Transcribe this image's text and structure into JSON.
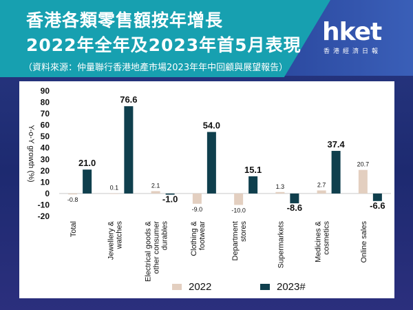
{
  "header": {
    "title_line1": "香港各類零售額按年增長",
    "title_line2": "2022年全年及2023年首5月表現",
    "source": "（資料來源：仲量聯行香港地產市場2023年年中回顧與展望報告）"
  },
  "logo": {
    "text": "hket",
    "subtitle": "香港經濟日報"
  },
  "colors": {
    "header_bg": "#17a0b0",
    "series_2022": "#e3cfc0",
    "series_2023": "#0f3f4d"
  },
  "chart_data": {
    "type": "bar",
    "ylabel": "Y-o-Y growth (%)",
    "ylim": [
      -20,
      90
    ],
    "yticks": [
      -20,
      -10,
      0,
      10,
      20,
      30,
      40,
      50,
      60,
      70,
      80,
      90
    ],
    "ytick_labels": [
      "-20",
      "-10",
      "0",
      "10",
      "20",
      "30",
      "40",
      "50",
      "60",
      "70",
      "80",
      "90"
    ],
    "grid": false,
    "legend_position": "bottom",
    "categories": [
      [
        "Total"
      ],
      [
        "Jewellery &",
        "watches"
      ],
      [
        "Electrical goods &",
        "other consumer",
        "durables"
      ],
      [
        "Clothing &",
        "footwear"
      ],
      [
        "Department",
        "stores"
      ],
      [
        "Supermarkets"
      ],
      [
        "Medicines &",
        "cosmetics"
      ],
      [
        "Online sales"
      ]
    ],
    "series": [
      {
        "name": "2022",
        "values": [
          -0.8,
          0.1,
          2.1,
          -9.0,
          -10.0,
          1.3,
          2.7,
          20.7
        ],
        "labels": [
          "-0.8",
          "0.1",
          "2.1",
          "-9.0",
          "-10.0",
          "1.3",
          "2.7",
          "20.7"
        ]
      },
      {
        "name": "2023#",
        "values": [
          21.0,
          76.6,
          -1.0,
          54.0,
          15.1,
          -8.6,
          37.4,
          -6.6
        ],
        "labels": [
          "21.0",
          "76.6",
          "-1.0",
          "54.0",
          "15.1",
          "-8.6",
          "37.4",
          "-6.6"
        ]
      }
    ]
  }
}
